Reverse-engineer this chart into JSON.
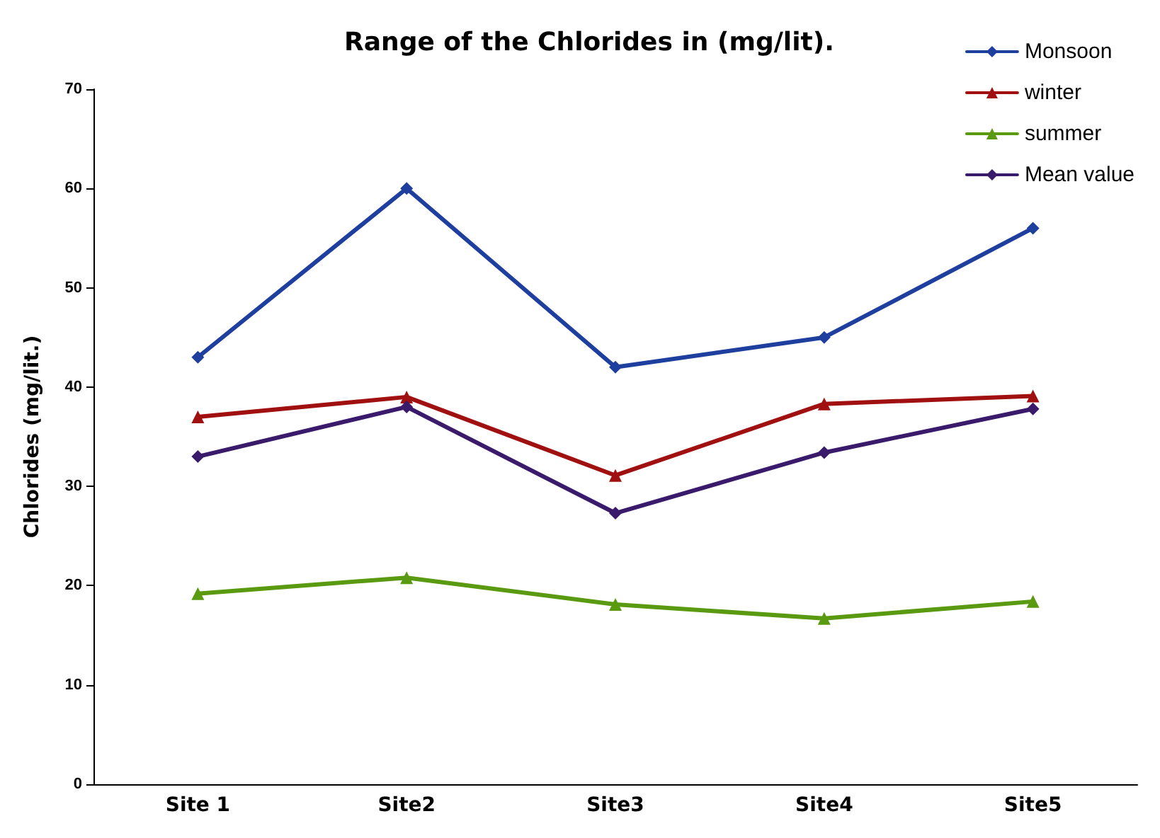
{
  "chart_data": {
    "type": "line",
    "title": "Range of the Chlorides in (mg/lit).",
    "ylabel": "Chlorides (mg/lit.)",
    "categories": [
      "Site 1",
      "Site2",
      "Site3",
      "Site4",
      "Site5"
    ],
    "series": [
      {
        "name": "Monsoon",
        "color": "#1f3f9f",
        "marker": "diamond",
        "values": [
          43,
          60,
          42,
          45,
          56
        ]
      },
      {
        "name": "winter",
        "color": "#a01010",
        "marker": "triangle",
        "values": [
          37,
          39,
          31.1,
          38.3,
          39.1
        ]
      },
      {
        "name": "summer",
        "color": "#5a9a10",
        "marker": "triangle",
        "values": [
          19.2,
          20.8,
          18.1,
          16.7,
          18.4
        ]
      },
      {
        "name": "Mean value",
        "color": "#3a1a6a",
        "marker": "diamond",
        "values": [
          33,
          38,
          27.3,
          33.4,
          37.8
        ]
      }
    ],
    "ylim": [
      0,
      70
    ],
    "yticks": [
      0,
      10,
      20,
      30,
      40,
      50,
      60,
      70
    ],
    "grid": false,
    "legend": "top right",
    "line_style": "solid"
  }
}
